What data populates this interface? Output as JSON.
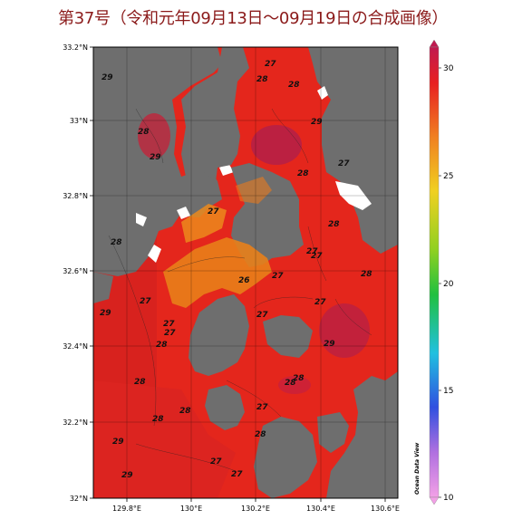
{
  "title": "第37号（令和元年09月13日～09月19日の合成画像）",
  "map": {
    "lon_ticks": [
      "129.8°E",
      "130°E",
      "130.2°E",
      "130.4°E",
      "130.6°E"
    ],
    "lat_ticks": [
      "33.2°N",
      "33°N",
      "32.8°N",
      "32.6°N",
      "32.4°N",
      "32.2°N",
      "32°N"
    ],
    "contour_labels": [
      "27",
      "28",
      "28",
      "29",
      "28",
      "29",
      "27",
      "28",
      "27",
      "29",
      "28",
      "28",
      "27",
      "27",
      "28",
      "29",
      "26",
      "27",
      "27",
      "28",
      "27",
      "27",
      "28",
      "28",
      "28",
      "29",
      "28",
      "27",
      "28",
      "29",
      "27",
      "27",
      "28",
      "29",
      "27",
      "27"
    ],
    "credit": "Ocean Data View"
  },
  "colorbar": {
    "ticks": [
      "30",
      "25",
      "20",
      "15",
      "10"
    ]
  },
  "colors": {
    "land": "#6e6e6e",
    "warm_sea": "#e8281e",
    "hot_sea": "#b4204a",
    "cool_sea": "#e8801a",
    "title": "#8b1a1a"
  }
}
